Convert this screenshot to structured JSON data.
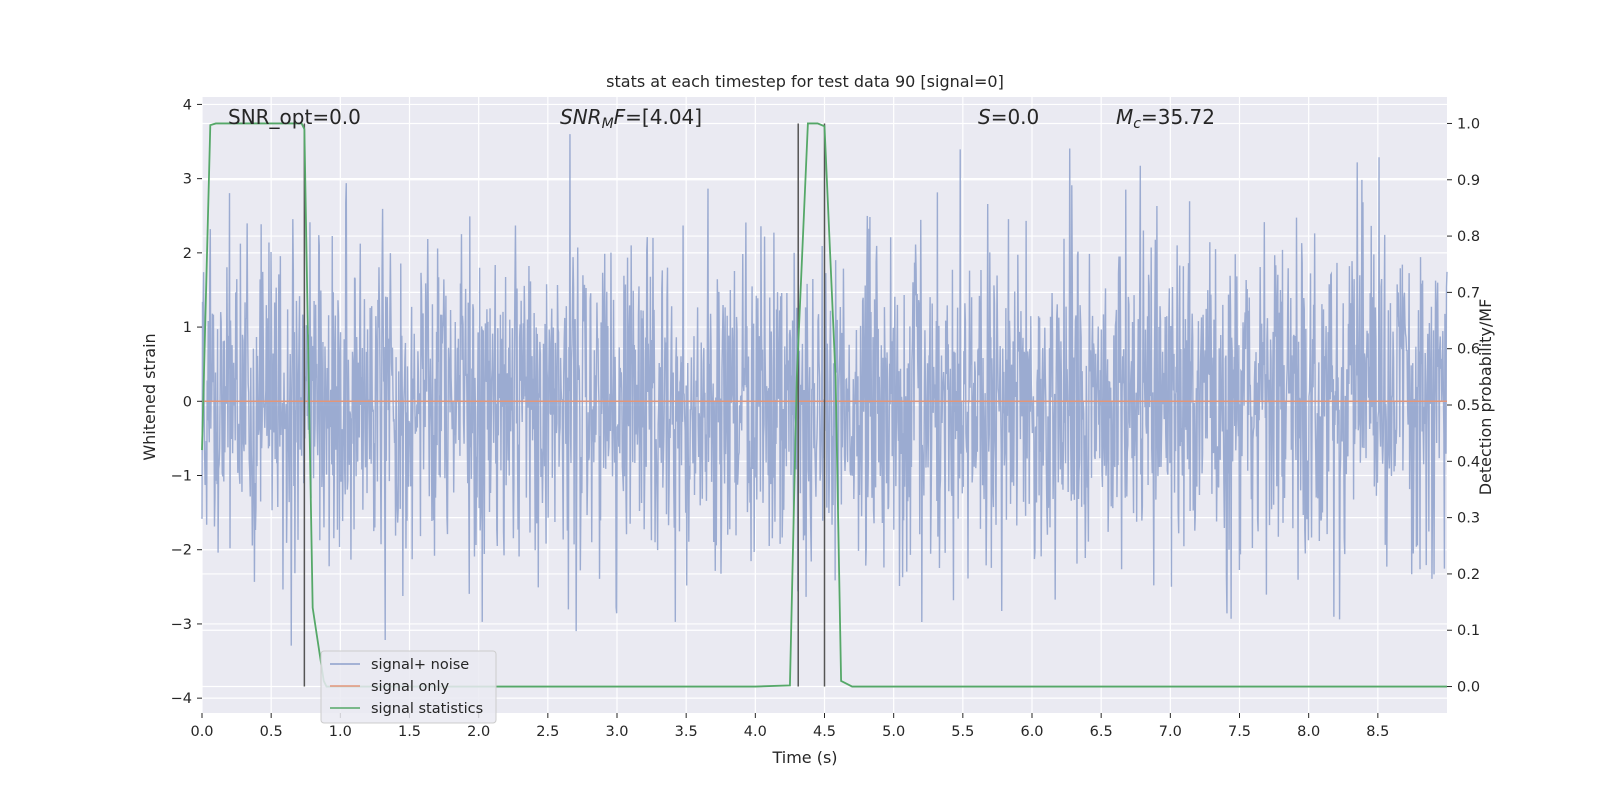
{
  "chart_data": {
    "type": "line",
    "title": "stats at each timestep for test data 90 [signal=0]",
    "xlabel": "Time (s)",
    "ylabel": "Whitened strain",
    "y2label": "Detection probability/MF",
    "xlim": [
      0.0,
      9.0
    ],
    "ylim": [
      -4.2,
      4.1
    ],
    "y2lim": [
      -0.047,
      1.047
    ],
    "x_ticks": [
      "0.0",
      "0.5",
      "1.0",
      "1.5",
      "2.0",
      "2.5",
      "3.0",
      "3.5",
      "4.0",
      "4.5",
      "5.0",
      "5.5",
      "6.0",
      "6.5",
      "7.0",
      "7.5",
      "8.0",
      "8.5"
    ],
    "y_ticks": [
      "4",
      "3",
      "2",
      "1",
      "0",
      "−1",
      "−2",
      "−3",
      "−4"
    ],
    "y2_ticks": [
      "1.0",
      "0.9",
      "0.8",
      "0.7",
      "0.6",
      "0.5",
      "0.4",
      "0.3",
      "0.2",
      "0.1",
      "0.0"
    ],
    "grid": true,
    "legend_position": "lower-left",
    "annotations": [
      {
        "prefix": "SNR_opt=0.0",
        "sub": "",
        "suffix": ""
      },
      {
        "prefix": "SNR",
        "sub": "M",
        "suffix": "F=[4.04]"
      },
      {
        "prefix": "S",
        "sub": "",
        "suffix": "=0.0"
      },
      {
        "prefix": "M",
        "sub": "c",
        "suffix": "=35.72"
      }
    ],
    "series": [
      {
        "name": "signal+ noise",
        "color": "#8da0cb",
        "noise_std": 1.0,
        "note_sampled": true
      },
      {
        "name": "signal only",
        "color": "#e1967a",
        "values_constant": 0.0
      },
      {
        "name": "signal statistics",
        "color": "#55a868",
        "x": [
          0.0,
          0.06,
          0.1,
          0.2,
          0.5,
          0.72,
          0.74,
          0.8,
          0.88,
          0.9,
          4.0,
          4.25,
          4.3,
          4.38,
          4.45,
          4.5,
          4.58,
          4.62,
          4.7,
          9.0
        ],
        "values": [
          0.42,
          0.997,
          1.0,
          1.0,
          1.0,
          1.0,
          0.99,
          0.14,
          0.01,
          0.0,
          0.0,
          0.002,
          0.55,
          1.0,
          1.0,
          0.995,
          0.55,
          0.01,
          0.0,
          0.0
        ]
      }
    ],
    "vlines": [
      {
        "x": 0.74,
        "y2_from": 0.0,
        "y2_to": 1.0
      },
      {
        "x": 4.31,
        "y2_from": 0.0,
        "y2_to": 1.0
      },
      {
        "x": 4.5,
        "y2_from": 0.0,
        "y2_to": 1.0
      }
    ]
  }
}
